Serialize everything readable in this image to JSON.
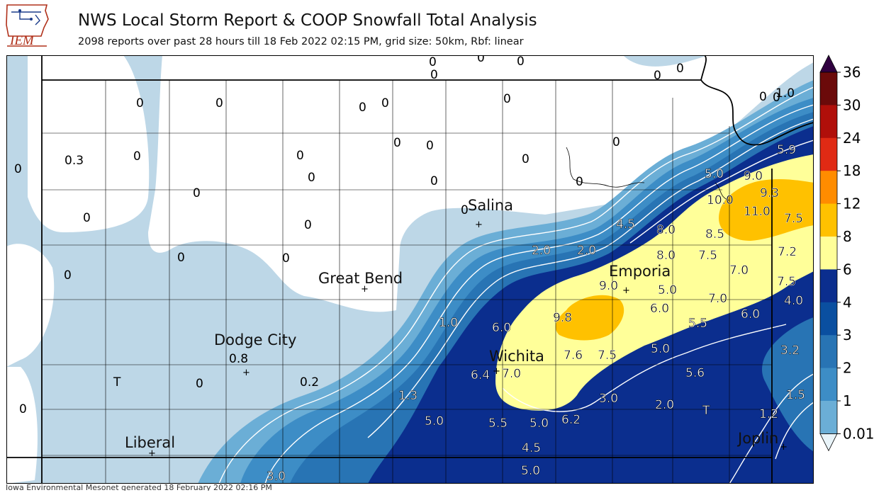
{
  "header": {
    "logo_text": "IEM",
    "title": "NWS Local Storm Report & COOP Snowfall Total Analysis",
    "subtitle": "2098 reports over past 28 hours till 18 Feb 2022 02:15 PM, grid size: 50km, Rbf: linear"
  },
  "footer": {
    "text": "Iowa Environmental Mesonet generated 18 February 2022 02:16 PM"
  },
  "colorbar": {
    "ticks": [
      "36",
      "30",
      "24",
      "18",
      "12",
      "8",
      "6",
      "4",
      "3",
      "2",
      "1",
      "0.01"
    ],
    "colors": [
      "#e9f4f9",
      "#bdd7e7",
      "#6baed6",
      "#3d8dc6",
      "#2874b4",
      "#0a4fa0",
      "#0b2e8e",
      "#ffff99",
      "#ffc100",
      "#ff8c00",
      "#e02a14",
      "#b00f0a",
      "#6b0a0a",
      "#300040"
    ]
  },
  "cities": {
    "salina": "Salina",
    "great_bend": "Great Bend",
    "dodge_city": "Dodge City",
    "liberal": "Liberal",
    "wichita": "Wichita",
    "emporia": "Emporia",
    "joplin": "Joplin"
  },
  "values": {
    "v01": "0",
    "v02": "0",
    "v03": "0",
    "v04": "0",
    "v05": "0",
    "v06": "0",
    "v07": "0",
    "v08": "0",
    "v09": "0",
    "v10": "1.0",
    "v11": "0",
    "v12": "0",
    "v13": "0",
    "v14": "0",
    "v15": "0",
    "v16": "0",
    "v17": "0",
    "v18": "0",
    "v19": "0.3",
    "v20": "0",
    "v21": "0",
    "v22": "0",
    "v23": "0",
    "v24": "0",
    "v25": "0",
    "v26": "0",
    "v27": "0",
    "v28": "0",
    "v29": "0",
    "v30": "0",
    "v31": "0",
    "v32": "0",
    "v33": "0.8",
    "v34": "0",
    "v35": "0.2",
    "v36": "T",
    "v37": "0",
    "v38": "5.9",
    "v39": "5.0",
    "v40": "9.0",
    "v41": "9.3",
    "v42": "10.0",
    "v43": "11.0",
    "v44": "7.5",
    "v45": "4.5",
    "v46": "8.0",
    "v47": "8.5",
    "v48": "2.0",
    "v49": "2.0",
    "v50": "8.0",
    "v51": "7.5",
    "v52": "7.2",
    "v53": "7.0",
    "v54": "9.0",
    "v55": "5.0",
    "v56": "7.5",
    "v57": "7.0",
    "v58": "4.0",
    "v59": "6.0",
    "v60": "9.8",
    "v61": "5.5",
    "v62": "6.0",
    "v63": "1.0",
    "v64": "6.0",
    "v65": "5.0",
    "v66": "3.2",
    "v67": "7.6",
    "v68": "7.5",
    "v69": "6.4",
    "v70": "7.0",
    "v71": "5.6",
    "v72": "1.3",
    "v73": "3.0",
    "v74": "2.0",
    "v75": "T",
    "v76": "1.5",
    "v77": "1.2",
    "v78": "5.0",
    "v79": "5.5",
    "v80": "5.0",
    "v81": "6.2",
    "v82": "4.5",
    "v83": "5.0",
    "v84": "3.0"
  }
}
